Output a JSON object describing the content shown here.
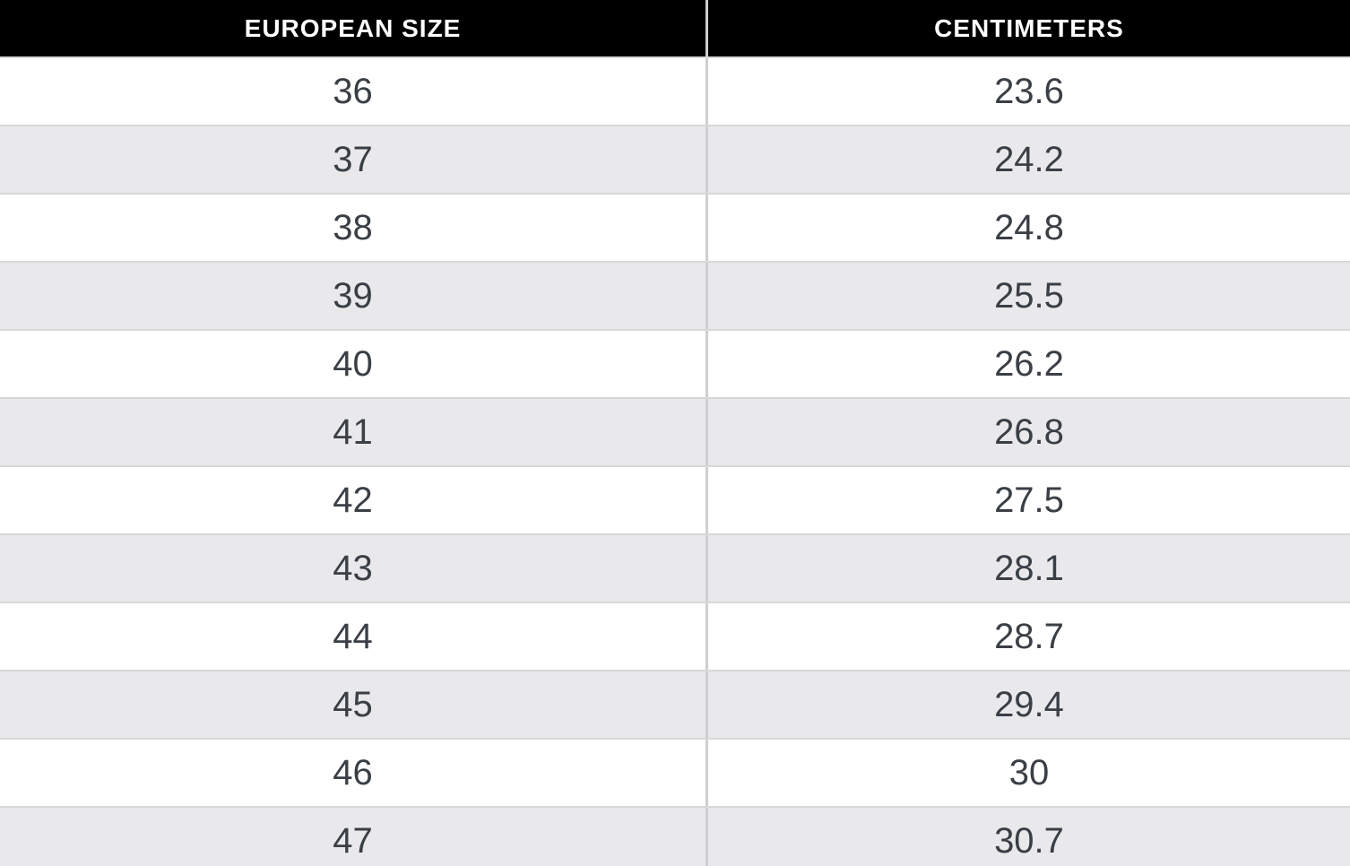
{
  "table": {
    "columns": [
      {
        "label": "EUROPEAN SIZE"
      },
      {
        "label": "CENTIMETERS"
      }
    ],
    "rows": [
      [
        "36",
        "23.6"
      ],
      [
        "37",
        "24.2"
      ],
      [
        "38",
        "24.8"
      ],
      [
        "39",
        "25.5"
      ],
      [
        "40",
        "26.2"
      ],
      [
        "41",
        "26.8"
      ],
      [
        "42",
        "27.5"
      ],
      [
        "43",
        "28.1"
      ],
      [
        "44",
        "28.7"
      ],
      [
        "45",
        "29.4"
      ],
      [
        "46",
        "30"
      ],
      [
        "47",
        "30.7"
      ]
    ]
  },
  "colors": {
    "header_bg": "#000000",
    "header_text": "#ffffff",
    "row_bg": "#ffffff",
    "row_alt_bg": "#e9e9eb",
    "row_border": "#d8d8da",
    "column_divider": "#cfcfd1",
    "cell_text": "#3a3f46"
  },
  "chart_data": {
    "type": "table",
    "title": "European shoe size to centimeters conversion",
    "columns": [
      "EUROPEAN SIZE",
      "CENTIMETERS"
    ],
    "european_size": [
      36,
      37,
      38,
      39,
      40,
      41,
      42,
      43,
      44,
      45,
      46,
      47
    ],
    "centimeters": [
      23.6,
      24.2,
      24.8,
      25.5,
      26.2,
      26.8,
      27.5,
      28.1,
      28.7,
      29.4,
      30,
      30.7
    ]
  }
}
